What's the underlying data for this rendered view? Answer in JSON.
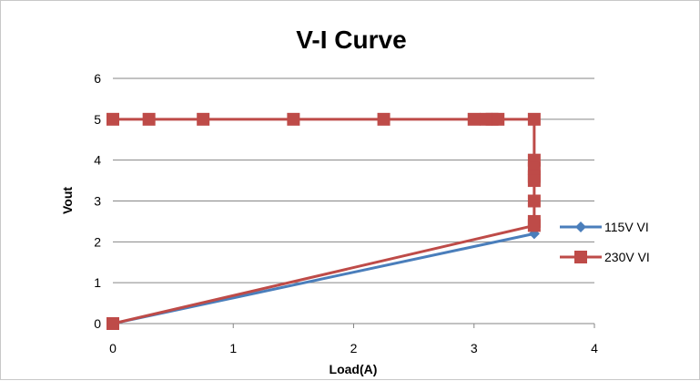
{
  "chart_data": {
    "type": "scatter",
    "title": "V-I Curve",
    "xlabel": "Load(A)",
    "ylabel": "Vout",
    "xlim": [
      0,
      4
    ],
    "ylim": [
      0,
      6
    ],
    "xticks": [
      "0",
      "1",
      "2",
      "3",
      "4"
    ],
    "yticks": [
      "0",
      "1",
      "2",
      "3",
      "4",
      "5",
      "6"
    ],
    "grid": "horizontal major",
    "legend_position": "right",
    "series": [
      {
        "name": "115V VI",
        "color": "#4a7ebb",
        "marker": "diamond",
        "points": [
          {
            "x": 0,
            "y": 0
          },
          {
            "x": 3.5,
            "y": 2.2
          }
        ]
      },
      {
        "name": "230V VI",
        "color": "#be4b48",
        "marker": "square",
        "points": [
          {
            "x": 0,
            "y": 5
          },
          {
            "x": 0.3,
            "y": 5
          },
          {
            "x": 0.75,
            "y": 5
          },
          {
            "x": 1.5,
            "y": 5
          },
          {
            "x": 2.25,
            "y": 5
          },
          {
            "x": 3.0,
            "y": 5
          },
          {
            "x": 3.1,
            "y": 5
          },
          {
            "x": 3.15,
            "y": 5
          },
          {
            "x": 3.2,
            "y": 5
          },
          {
            "x": 3.5,
            "y": 5
          },
          {
            "x": 3.5,
            "y": 4.0
          },
          {
            "x": 3.5,
            "y": 3.8
          },
          {
            "x": 3.5,
            "y": 3.6
          },
          {
            "x": 3.5,
            "y": 3.5
          },
          {
            "x": 3.5,
            "y": 3.0
          },
          {
            "x": 3.5,
            "y": 2.5
          },
          {
            "x": 3.5,
            "y": 2.4
          },
          {
            "x": 0,
            "y": 0
          }
        ]
      }
    ]
  }
}
